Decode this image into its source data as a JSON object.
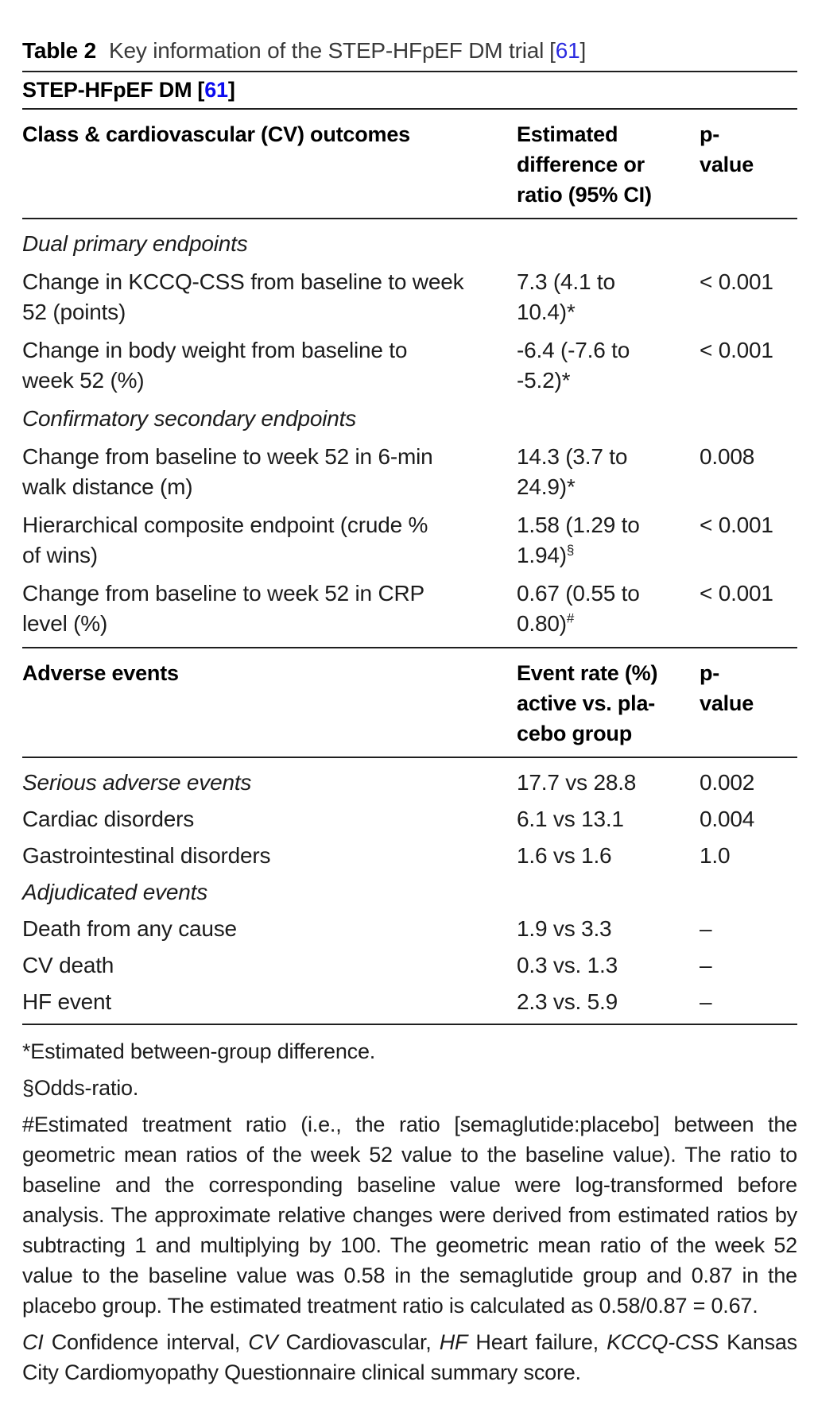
{
  "colors": {
    "reference_blue": "#0b0bf0",
    "reference_blue_light": "#2a2ae0",
    "text": "#1c1c1c",
    "rule": "#1f1f1f"
  },
  "title": {
    "label": "Table 2",
    "text": "Key information of the STEP-HFpEF DM trial",
    "ref_open": "[",
    "ref_num": "61",
    "ref_close": "]"
  },
  "subheader": {
    "text": "STEP-HFpEF DM",
    "ref_open": "[",
    "ref_num": "61",
    "ref_close": "]"
  },
  "outcomes": {
    "header": {
      "col1": "Class & cardiovascular (CV) outcomes",
      "col2_lines": [
        "Estimated",
        "difference or",
        "ratio (95% CI)"
      ],
      "col3_lines": [
        "p-",
        "value"
      ]
    },
    "rows": [
      {
        "style": "section",
        "label_lines": [
          "Dual primary endpoints"
        ],
        "value_lines": [],
        "sup": "",
        "p": ""
      },
      {
        "style": "data",
        "label_lines": [
          "Change in KCCQ-CSS from baseline to week",
          "52 (points)"
        ],
        "value_lines": [
          "7.3 (4.1 to",
          "10.4)*"
        ],
        "sup": "",
        "p": "< 0.001"
      },
      {
        "style": "data",
        "label_lines": [
          "Change in body weight from baseline to",
          "week 52 (%)"
        ],
        "value_lines": [
          "-6.4 (-7.6 to",
          "-5.2)*"
        ],
        "sup": "",
        "p": "< 0.001"
      },
      {
        "style": "section",
        "label_lines": [
          "Confirmatory secondary endpoints"
        ],
        "value_lines": [],
        "sup": "",
        "p": ""
      },
      {
        "style": "data",
        "label_lines": [
          "Change from baseline to week 52 in 6-min",
          "walk distance (m)"
        ],
        "value_lines": [
          "14.3 (3.7 to",
          "24.9)*"
        ],
        "sup": "",
        "p": "0.008"
      },
      {
        "style": "data",
        "label_lines": [
          "Hierarchical composite endpoint (crude %",
          "of wins)"
        ],
        "value_lines": [
          "1.58 (1.29 to",
          "1.94)"
        ],
        "sup": "§",
        "p": "< 0.001"
      },
      {
        "style": "data",
        "label_lines": [
          "Change from baseline to week 52 in CRP",
          "level (%)"
        ],
        "value_lines": [
          "0.67 (0.55 to",
          "0.80)"
        ],
        "sup": "#",
        "p": "< 0.001"
      }
    ]
  },
  "adverse": {
    "header": {
      "col1": "Adverse events",
      "col2_lines": [
        "Event rate (%)",
        "active vs. pla-",
        "cebo group"
      ],
      "col3_lines": [
        "p-",
        "value"
      ]
    },
    "rows": [
      {
        "style": "section",
        "label_lines": [
          "Serious adverse events"
        ],
        "value_lines": [
          "17.7 vs 28.8"
        ],
        "sup": "",
        "p": "0.002"
      },
      {
        "style": "data",
        "label_lines": [
          "Cardiac disorders"
        ],
        "value_lines": [
          "6.1 vs 13.1"
        ],
        "sup": "",
        "p": "0.004"
      },
      {
        "style": "data",
        "label_lines": [
          "Gastrointestinal disorders"
        ],
        "value_lines": [
          "1.6 vs 1.6"
        ],
        "sup": "",
        "p": "1.0"
      },
      {
        "style": "section",
        "label_lines": [
          "Adjudicated events"
        ],
        "value_lines": [],
        "sup": "",
        "p": ""
      },
      {
        "style": "data",
        "label_lines": [
          "Death from any cause"
        ],
        "value_lines": [
          "1.9 vs 3.3"
        ],
        "sup": "",
        "p": "–"
      },
      {
        "style": "data",
        "label_lines": [
          "CV death"
        ],
        "value_lines": [
          "0.3 vs. 1.3"
        ],
        "sup": "",
        "p": "–"
      },
      {
        "style": "data",
        "label_lines": [
          "HF event"
        ],
        "value_lines": [
          "2.3 vs. 5.9"
        ],
        "sup": "",
        "p": "–"
      }
    ]
  },
  "footnotes": {
    "fn1": "*Estimated between-group difference.",
    "fn2": "§Odds-ratio.",
    "fn3": "#Estimated treatment ratio (i.e., the ratio [semaglutide:placebo] between the geometric mean ratios of the week 52 value to the baseline value). The ratio to baseline and the corresponding baseline value were log-transformed before analysis. The approximate relative changes were derived from estimated ratios by subtracting 1 and multiplying by 100. The geometric mean ratio of the week 52 value to the baseline value was 0.58 in the semaglutide group and 0.87 in the placebo group. The estimated treatment ratio is calculated as 0.58/0.87 = 0.67.",
    "abbr": [
      {
        "abbr": "CI",
        "text": " Confidence interval, "
      },
      {
        "abbr": "CV",
        "text": " Cardiovascular, "
      },
      {
        "abbr": "HF",
        "text": " Heart failure, "
      },
      {
        "abbr": "KCCQ-CSS",
        "text": " Kansas City Cardiomyopathy Questionnaire clinical summary score."
      }
    ]
  }
}
